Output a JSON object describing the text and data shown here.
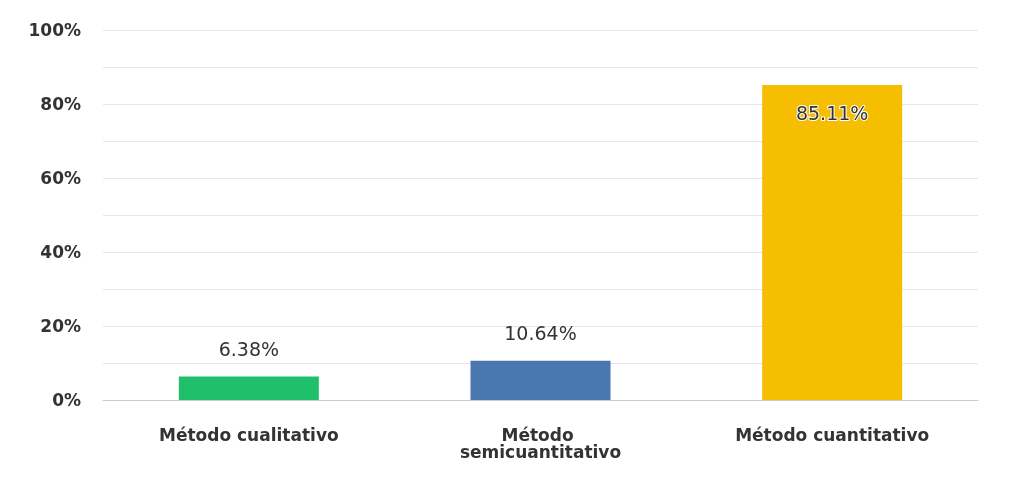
{
  "chart_data": {
    "type": "bar",
    "categories": [
      "Método cualitativo",
      "Método semicuantitativo",
      "Método cuantitativo"
    ],
    "values": [
      6.38,
      10.64,
      85.11
    ],
    "colors": [
      "#1fbf6b",
      "#4a76b0",
      "#f5be00"
    ],
    "value_labels": [
      "6.38%",
      "10.64%",
      "85.11%"
    ],
    "ylim": [
      0,
      100
    ],
    "yticks": [
      {
        "value": 0,
        "label": "0%"
      },
      {
        "value": 10,
        "label": null
      },
      {
        "value": 20,
        "label": "20%"
      },
      {
        "value": 30,
        "label": null
      },
      {
        "value": 40,
        "label": "40%"
      },
      {
        "value": 50,
        "label": null
      },
      {
        "value": 60,
        "label": "60%"
      },
      {
        "value": 70,
        "label": null
      },
      {
        "value": 80,
        "label": "80%"
      },
      {
        "value": 90,
        "label": null
      },
      {
        "value": 100,
        "label": "100%"
      }
    ],
    "grid": "y"
  }
}
